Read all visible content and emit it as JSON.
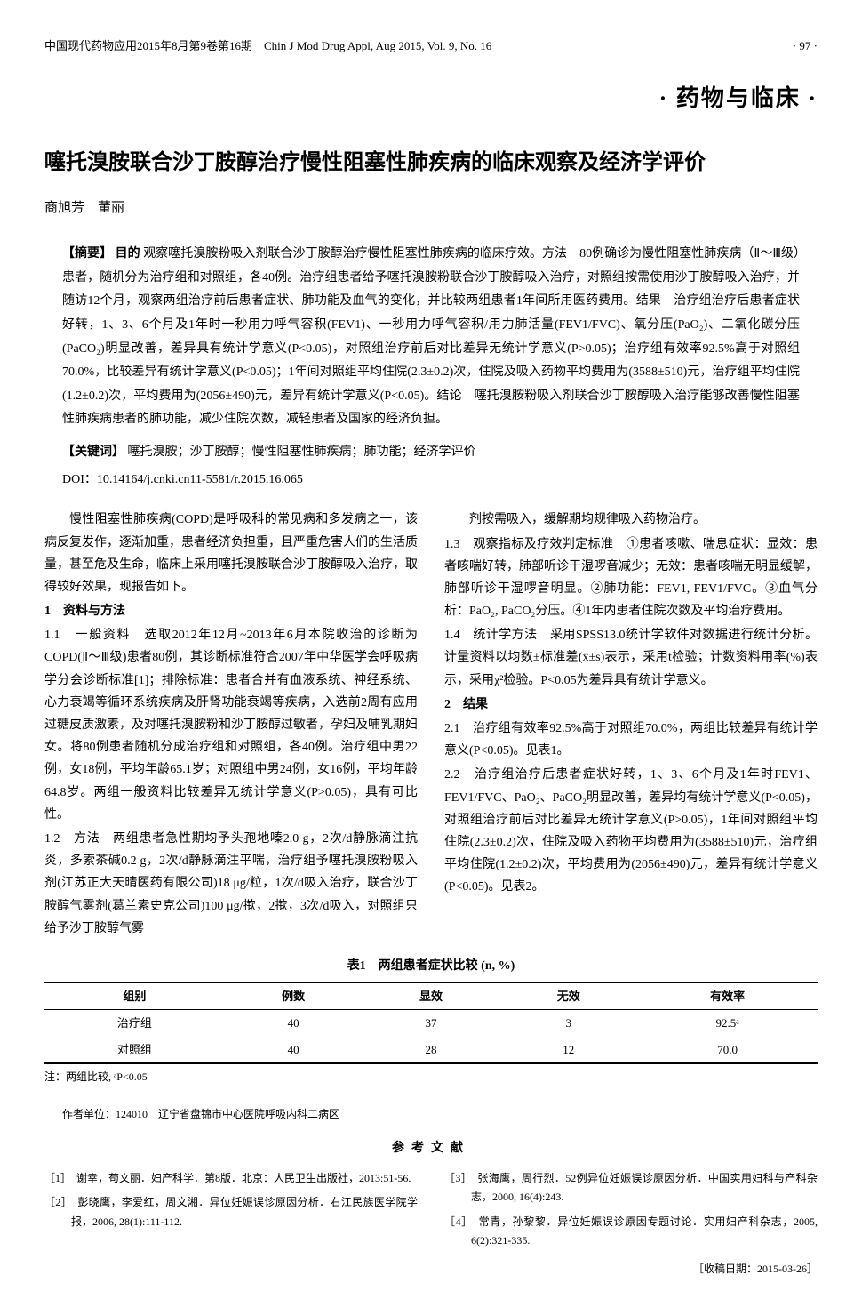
{
  "header": {
    "journal": "中国现代药物应用2015年8月第9卷第16期　Chin J Mod Drug Appl, Aug 2015, Vol. 9, No. 16",
    "page": "· 97 ·"
  },
  "section_banner": "· 药物与临床 ·",
  "title": "噻托溴胺联合沙丁胺醇治疗慢性阻塞性肺疾病的临床观察及经济学评价",
  "authors": "商旭芳　董丽",
  "abstract_label": "【摘要】",
  "abstract_aim_label": "目的",
  "abstract_text": "观察噻托溴胺粉吸入剂联合沙丁胺醇治疗慢性阻塞性肺疾病的临床疗效。方法　80例确诊为慢性阻塞性肺疾病（Ⅱ～Ⅲ级）患者，随机分为治疗组和对照组，各40例。治疗组患者给予噻托溴胺粉联合沙丁胺醇吸入治疗，对照组按需使用沙丁胺醇吸入治疗，并随访12个月，观察两组治疗前后患者症状、肺功能及血气的变化，并比较两组患者1年间所用医药费用。结果　治疗组治疗后患者症状好转，1、3、6个月及1年时一秒用力呼气容积(FEV1)、一秒用力呼气容积/用力肺活量(FEV1/FVC)、氧分压(PaO₂)、二氧化碳分压(PaCO₂)明显改善，差异具有统计学意义(P<0.05)，对照组治疗前后对比差异无统计学意义(P>0.05)；治疗组有效率92.5%高于对照组70.0%，比较差异有统计学意义(P<0.05)；1年间对照组平均住院(2.3±0.2)次，住院及吸入药物平均费用为(3588±510)元，治疗组平均住院(1.2±0.2)次，平均费用为(2056±490)元，差异有统计学意义(P<0.05)。结论　噻托溴胺粉吸入剂联合沙丁胺醇吸入治疗能够改善慢性阻塞性肺疾病患者的肺功能，减少住院次数，减轻患者及国家的经济负担。",
  "keywords_label": "【关键词】",
  "keywords_text": "噻托溴胺；沙丁胺醇；慢性阻塞性肺疾病；肺功能；经济学评价",
  "doi": "DOI：10.14164/j.cnki.cn11-5581/r.2015.16.065",
  "col1": {
    "p1": "慢性阻塞性肺疾病(COPD)是呼吸科的常见病和多发病之一，该病反复发作，逐渐加重，患者经济负担重，且严重危害人们的生活质量，甚至危及生命，临床上采用噻托溴胺联合沙丁胺醇吸入治疗，取得较好效果，现报告如下。",
    "s1": "1　资料与方法",
    "s11": "1.1　一般资料　选取2012年12月~2013年6月本院收治的诊断为COPD(Ⅱ～Ⅲ级)患者80例，其诊断标准符合2007年中华医学会呼吸病学分会诊断标准[1]；排除标准：患者合并有血液系统、神经系统、心力衰竭等循环系统疾病及肝肾功能衰竭等疾病，入选前2周有应用过糖皮质激素，及对噻托溴胺粉和沙丁胺醇过敏者，孕妇及哺乳期妇女。将80例患者随机分成治疗组和对照组，各40例。治疗组中男22例，女18例，平均年龄65.1岁；对照组中男24例，女16例，平均年龄64.8岁。两组一般资料比较差异无统计学意义(P>0.05)，具有可比性。",
    "s12": "1.2　方法　两组患者急性期均予头孢地嗪2.0 g，2次/d静脉滴注抗炎，多索茶碱0.2 g，2次/d静脉滴注平喘，治疗组予噻托溴胺粉吸入剂(江苏正大天晴医药有限公司)18 μg/粒，1次/d吸入治疗，联合沙丁胺醇气雾剂(葛兰素史克公司)100 μg/揿，2揿，3次/d吸入，对照组只给予沙丁胺醇气雾"
  },
  "col2": {
    "p1": "剂按需吸入，缓解期均规律吸入药物治疗。",
    "s13": "1.3　观察指标及疗效判定标准　①患者咳嗽、喘息症状：显效：患者咳喘好转，肺部听诊干湿啰音减少；无效：患者咳喘无明显缓解，肺部听诊干湿啰音明显。②肺功能：FEV1, FEV1/FVC。③血气分析：PaO₂, PaCO₂分压。④1年内患者住院次数及平均治疗费用。",
    "s14": "1.4　统计学方法　采用SPSS13.0统计学软件对数据进行统计分析。计量资料以均数±标准差(x̄±s)表示，采用t检验；计数资料用率(%)表示，采用χ²检验。P<0.05为差异具有统计学意义。",
    "s2": "2　结果",
    "s21": "2.1　治疗组有效率92.5%高于对照组70.0%，两组比较差异有统计学意义(P<0.05)。见表1。",
    "s22": "2.2　治疗组治疗后患者症状好转，1、3、6个月及1年时FEV1、FEV1/FVC、PaO₂、PaCO₂明显改善，差异均有统计学意义(P<0.05)，对照组治疗前后对比差异无统计学意义(P>0.05)，1年间对照组平均住院(2.3±0.2)次，住院及吸入药物平均费用为(3588±510)元，治疗组平均住院(1.2±0.2)次，平均费用为(2056±490)元，差异有统计学意义(P<0.05)。见表2。"
  },
  "table1": {
    "title": "表1　两组患者症状比较 (n, %)",
    "columns": [
      "组别",
      "例数",
      "显效",
      "无效",
      "有效率"
    ],
    "rows": [
      [
        "治疗组",
        "40",
        "37",
        "3",
        "92.5ᵃ"
      ],
      [
        "对照组",
        "40",
        "28",
        "12",
        "70.0"
      ]
    ],
    "note": "注：两组比较, ᵃP<0.05"
  },
  "affiliation": "作者单位：124010　辽宁省盘锦市中心医院呼吸内科二病区",
  "refs_title": "参考文献",
  "refs": [
    "［1］　谢幸，苟文丽．妇产科学．第8版．北京：人民卫生出版社，2013:51-56.",
    "［2］　彭晓鹰，李爱红，周文湘．异位妊娠误诊原因分析．右江民族医学院学报，2006, 28(1):111-112.",
    "［3］　张海鹰，周行烈．52例异位妊娠误诊原因分析．中国实用妇科与产科杂志，2000, 16(4):243.",
    "［4］　常青，孙黎黎．异位妊娠误诊原因专题讨论．实用妇产科杂志，2005, 6(2):321-335."
  ],
  "receipt": "［收稿日期：2015-03-26］"
}
